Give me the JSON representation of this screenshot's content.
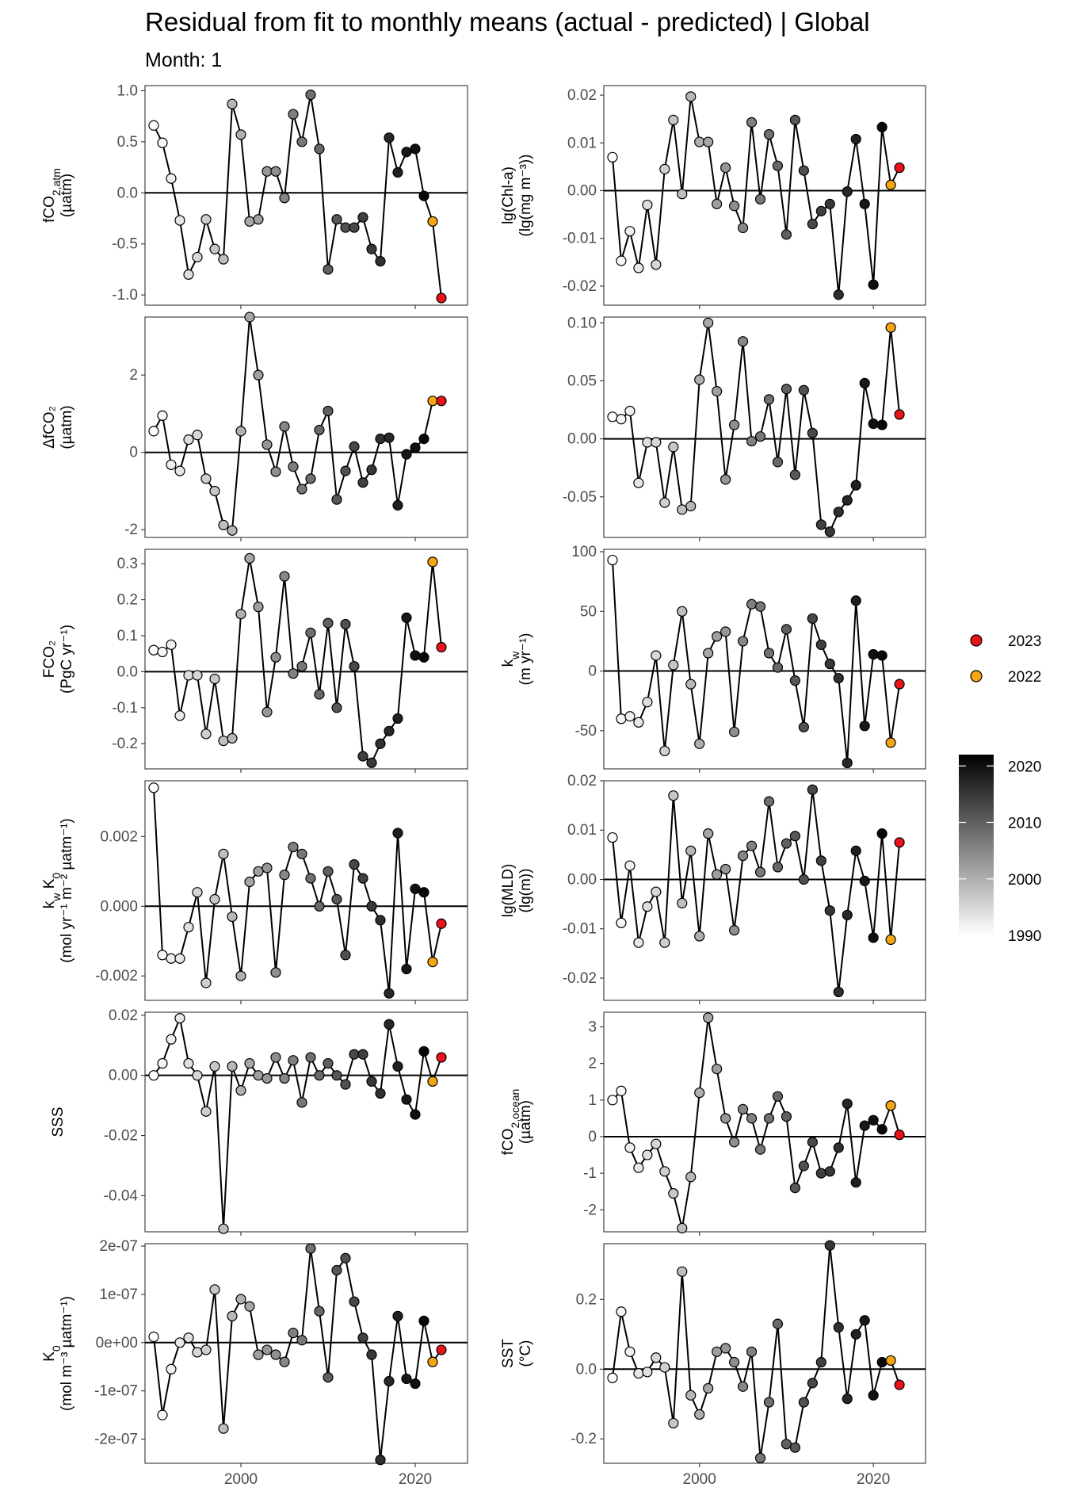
{
  "chart_data": {
    "type": "line",
    "title": "Residual from fit to monthly means (actual - predicted) | Global",
    "subtitle": "Month: 1",
    "x": [
      1990,
      1991,
      1992,
      1993,
      1994,
      1995,
      1996,
      1997,
      1998,
      1999,
      2000,
      2001,
      2002,
      2003,
      2004,
      2005,
      2006,
      2007,
      2008,
      2009,
      2010,
      2011,
      2012,
      2013,
      2014,
      2015,
      2016,
      2017,
      2018,
      2019,
      2020,
      2021,
      2022,
      2023
    ],
    "xlim": [
      1989,
      2026
    ],
    "x_ticks": [
      2000,
      2020
    ],
    "x_tick_labels": [
      "2000",
      "2020"
    ],
    "highlight": {
      "2022": "#f5a512",
      "2023": "#e8121b"
    },
    "legend": {
      "entries": [
        {
          "label": "2023",
          "color": "#e8121b"
        },
        {
          "label": "2022",
          "color": "#f5a512"
        }
      ],
      "colorbar": {
        "min": 1990,
        "max": 2022,
        "ticks": [
          "2020",
          "2010",
          "2000",
          "1990"
        ],
        "tick_values": [
          2020,
          2010,
          2000,
          1990
        ],
        "low_color": "#ffffff",
        "high_color": "#000000"
      }
    },
    "panels": [
      {
        "id": "fco2atm",
        "ylabel_lines": [
          "fCO₂,atm",
          "(µatm)"
        ],
        "ylim": [
          -1.1,
          1.05
        ],
        "yticks": [
          1.0,
          0.5,
          0.0,
          -0.5,
          -1.0
        ],
        "ytick_labels": [
          "1.0",
          "0.5",
          "0.0",
          "-0.5",
          "-1.0"
        ],
        "values": [
          0.66,
          0.49,
          0.14,
          -0.27,
          -0.8,
          -0.63,
          -0.26,
          -0.55,
          -0.65,
          0.87,
          0.57,
          -0.28,
          -0.26,
          0.21,
          0.21,
          -0.05,
          0.77,
          0.5,
          0.96,
          0.43,
          -0.75,
          -0.26,
          -0.34,
          -0.34,
          -0.24,
          -0.55,
          -0.67,
          0.54,
          0.2,
          0.4,
          0.43,
          -0.03,
          -0.28,
          -1.03
        ]
      },
      {
        "id": "chla",
        "ylabel_lines": [
          "lg(Chl-a)",
          "(lg(mg m⁻³))"
        ],
        "ylim": [
          -0.024,
          0.022
        ],
        "yticks": [
          0.02,
          0.01,
          0.0,
          -0.01,
          -0.02
        ],
        "ytick_labels": [
          "0.02",
          "0.01",
          "0.00",
          "-0.01",
          "-0.02"
        ],
        "values": [
          0.007,
          -0.0147,
          -0.0085,
          -0.0162,
          -0.003,
          -0.0155,
          0.0045,
          0.0148,
          -0.0007,
          0.0197,
          0.0102,
          0.0102,
          -0.0028,
          0.0048,
          -0.0032,
          -0.0078,
          0.0143,
          -0.0018,
          0.0118,
          0.0052,
          -0.0092,
          0.0148,
          0.0042,
          -0.007,
          -0.0043,
          -0.0028,
          -0.0218,
          -0.0002,
          0.0108,
          -0.0028,
          -0.0197,
          0.0133,
          0.0012,
          0.0048
        ]
      },
      {
        "id": "dfco2",
        "ylabel_lines": [
          "ΔfCO₂",
          "(µatm)"
        ],
        "ylim": [
          -2.2,
          3.5
        ],
        "yticks": [
          2,
          0,
          -2
        ],
        "ytick_labels": [
          "2",
          "0",
          "-2"
        ],
        "values": [
          0.55,
          0.95,
          -0.32,
          -0.48,
          0.33,
          0.45,
          -0.68,
          -1.0,
          -1.88,
          -2.02,
          0.55,
          3.5,
          2.0,
          0.2,
          -0.5,
          0.67,
          -0.37,
          -0.95,
          -0.68,
          0.58,
          1.07,
          -1.22,
          -0.48,
          0.15,
          -0.78,
          -0.45,
          0.35,
          0.38,
          -1.37,
          -0.05,
          0.12,
          0.35,
          1.33,
          1.33
        ]
      },
      {
        "id": "lg_chla_2",
        "ylabel_lines": [],
        "ylim": [
          -0.085,
          0.105
        ],
        "yticks": [
          0.1,
          0.05,
          0.0,
          -0.05
        ],
        "ytick_labels": [
          "0.10",
          "0.05",
          "0.00",
          "-0.05"
        ],
        "values": [
          0.019,
          0.017,
          0.024,
          -0.038,
          -0.003,
          -0.003,
          -0.055,
          -0.007,
          -0.061,
          -0.058,
          0.051,
          0.1,
          0.041,
          -0.035,
          0.012,
          0.084,
          -0.002,
          0.002,
          0.034,
          -0.02,
          0.043,
          -0.031,
          0.042,
          0.005,
          -0.074,
          -0.08,
          -0.063,
          -0.053,
          -0.04,
          0.048,
          0.013,
          0.012,
          0.096,
          0.021
        ]
      },
      {
        "id": "fco2flux",
        "ylabel_lines": [
          "FCO₂",
          "(PgC yr⁻¹)"
        ],
        "ylim": [
          -0.27,
          0.34
        ],
        "yticks": [
          0.3,
          0.2,
          0.1,
          0.0,
          -0.1,
          -0.2
        ],
        "ytick_labels": [
          "0.3",
          "0.2",
          "0.1",
          "0.0",
          "-0.1",
          "-0.2"
        ],
        "values": [
          0.06,
          0.055,
          0.075,
          -0.122,
          -0.01,
          -0.01,
          -0.173,
          -0.02,
          -0.192,
          -0.185,
          0.16,
          0.315,
          0.18,
          -0.112,
          0.04,
          0.265,
          -0.005,
          0.015,
          0.108,
          -0.063,
          0.135,
          -0.1,
          0.132,
          0.015,
          -0.235,
          -0.253,
          -0.2,
          -0.165,
          -0.13,
          0.15,
          0.045,
          0.04,
          0.305,
          0.068
        ]
      },
      {
        "id": "kw",
        "ylabel_lines": [
          "k_w",
          "(m yr⁻¹)"
        ],
        "ylim": [
          -82,
          102
        ],
        "yticks": [
          100,
          50,
          0,
          -50
        ],
        "ytick_labels": [
          "100",
          "50",
          "0",
          "-50"
        ],
        "values": [
          93,
          -40,
          -38,
          -43,
          -26,
          13,
          -67,
          5,
          50,
          -11,
          -61,
          15,
          29,
          33,
          -51,
          25,
          56,
          54,
          15,
          3,
          35,
          -8,
          -47,
          44,
          22,
          6,
          -6,
          -77,
          59,
          -46,
          14,
          13,
          -60,
          -11
        ]
      },
      {
        "id": "kwk0",
        "ylabel_lines": [
          "k_w K_0",
          "(mol yr⁻¹ m⁻² µatm⁻¹)"
        ],
        "ylim": [
          -0.0027,
          0.0036
        ],
        "yticks": [
          0.002,
          0.0,
          -0.002
        ],
        "ytick_labels": [
          "0.002",
          "0.000",
          "-0.002"
        ],
        "values": [
          0.0034,
          -0.0014,
          -0.0015,
          -0.0015,
          -0.0006,
          0.0004,
          -0.0022,
          0.0002,
          0.0015,
          -0.0003,
          -0.002,
          0.0007,
          0.001,
          0.0011,
          -0.0019,
          0.0009,
          0.0017,
          0.0015,
          0.0008,
          0.0,
          0.001,
          0.0002,
          -0.0014,
          0.0012,
          0.0008,
          0.0,
          -0.0004,
          -0.0025,
          0.0021,
          -0.0018,
          0.0005,
          0.0004,
          -0.0016,
          -0.0005
        ]
      },
      {
        "id": "mld",
        "ylabel_lines": [
          "lg(MLD)",
          "(lg(m))"
        ],
        "ylim": [
          -0.0245,
          0.02
        ],
        "yticks": [
          0.02,
          0.01,
          0.0,
          -0.01,
          -0.02
        ],
        "ytick_labels": [
          "0.02",
          "0.01",
          "0.00",
          "-0.01",
          "-0.02"
        ],
        "values": [
          0.0085,
          -0.0088,
          0.0028,
          -0.0128,
          -0.0055,
          -0.0025,
          -0.0128,
          0.017,
          -0.0048,
          0.0058,
          -0.0115,
          0.0093,
          0.001,
          0.0021,
          -0.0103,
          0.0048,
          0.0068,
          0.0015,
          0.0158,
          0.0025,
          0.0073,
          0.0088,
          0.0,
          0.0182,
          0.0038,
          -0.0063,
          -0.0228,
          -0.0072,
          0.0058,
          -0.0003,
          -0.0118,
          0.0093,
          -0.0122,
          0.0075
        ]
      },
      {
        "id": "sss",
        "ylabel_lines": [
          "SSS"
        ],
        "ylim": [
          -0.052,
          0.021
        ],
        "yticks": [
          0.02,
          0.0,
          -0.02,
          -0.04
        ],
        "ytick_labels": [
          "0.02",
          "0.00",
          "-0.02",
          "-0.04"
        ],
        "values": [
          0.0,
          0.004,
          0.012,
          0.019,
          0.004,
          0.0,
          -0.012,
          0.003,
          -0.051,
          0.003,
          -0.005,
          0.004,
          0.0,
          -0.001,
          0.006,
          -0.001,
          0.005,
          -0.009,
          0.006,
          0.0,
          0.004,
          0.0,
          -0.003,
          0.007,
          0.007,
          -0.002,
          -0.006,
          0.017,
          0.003,
          -0.008,
          -0.013,
          0.008,
          -0.002,
          0.006
        ]
      },
      {
        "id": "fco2ocean",
        "ylabel_lines": [
          "fCO₂,ocean",
          "(µatm)"
        ],
        "ylim": [
          -2.6,
          3.4
        ],
        "yticks": [
          3,
          2,
          1,
          0,
          -1,
          -2
        ],
        "ytick_labels": [
          "3",
          "2",
          "1",
          "0",
          "-1",
          "-2"
        ],
        "values": [
          1.0,
          1.25,
          -0.3,
          -0.85,
          -0.5,
          -0.2,
          -0.95,
          -1.55,
          -2.5,
          -1.1,
          1.2,
          3.25,
          1.85,
          0.5,
          -0.15,
          0.75,
          0.5,
          -0.35,
          0.5,
          1.1,
          0.55,
          -1.4,
          -0.8,
          -0.15,
          -1.0,
          -0.95,
          -0.3,
          0.9,
          -1.25,
          0.3,
          0.45,
          0.2,
          0.85,
          0.05
        ]
      },
      {
        "id": "k0",
        "ylabel_lines": [
          "K_0",
          "(mol m⁻³ µatm⁻¹)"
        ],
        "ylim": [
          -2.5e-07,
          2.05e-07
        ],
        "yticks": [
          2e-07,
          1e-07,
          0,
          -1e-07,
          -2e-07
        ],
        "ytick_labels": [
          "2e-07",
          "1e-07",
          "0e+00",
          "-1e-07",
          "-2e-07"
        ],
        "values": [
          1.2e-08,
          -1.5e-07,
          -5.5e-08,
          0.0,
          1e-08,
          -2e-08,
          -1.5e-08,
          1.1e-07,
          -1.78e-07,
          5.5e-08,
          9e-08,
          7.5e-08,
          -2.5e-08,
          -1.5e-08,
          -2.5e-08,
          -4e-08,
          2e-08,
          5e-09,
          1.95e-07,
          6.5e-08,
          -7.2e-08,
          1.5e-07,
          1.75e-07,
          8.5e-08,
          1e-08,
          -2.5e-08,
          -2.43e-07,
          -8e-08,
          5.5e-08,
          -7.5e-08,
          -8.5e-08,
          4.5e-08,
          -4e-08,
          -1.5e-08
        ]
      },
      {
        "id": "sst",
        "ylabel_lines": [
          "SST",
          "(°C)"
        ],
        "ylim": [
          -0.27,
          0.36
        ],
        "yticks": [
          0.2,
          0.0,
          -0.2
        ],
        "ytick_labels": [
          "0.2",
          "0.0",
          "-0.2"
        ],
        "values": [
          -0.025,
          0.165,
          0.05,
          -0.012,
          -0.008,
          0.033,
          0.005,
          -0.155,
          0.28,
          -0.075,
          -0.13,
          -0.055,
          0.05,
          0.06,
          0.02,
          -0.05,
          0.05,
          -0.255,
          -0.095,
          0.13,
          -0.215,
          -0.225,
          -0.095,
          -0.04,
          0.02,
          0.355,
          0.12,
          -0.085,
          0.1,
          0.14,
          -0.075,
          0.02,
          0.025,
          -0.045
        ]
      }
    ]
  }
}
